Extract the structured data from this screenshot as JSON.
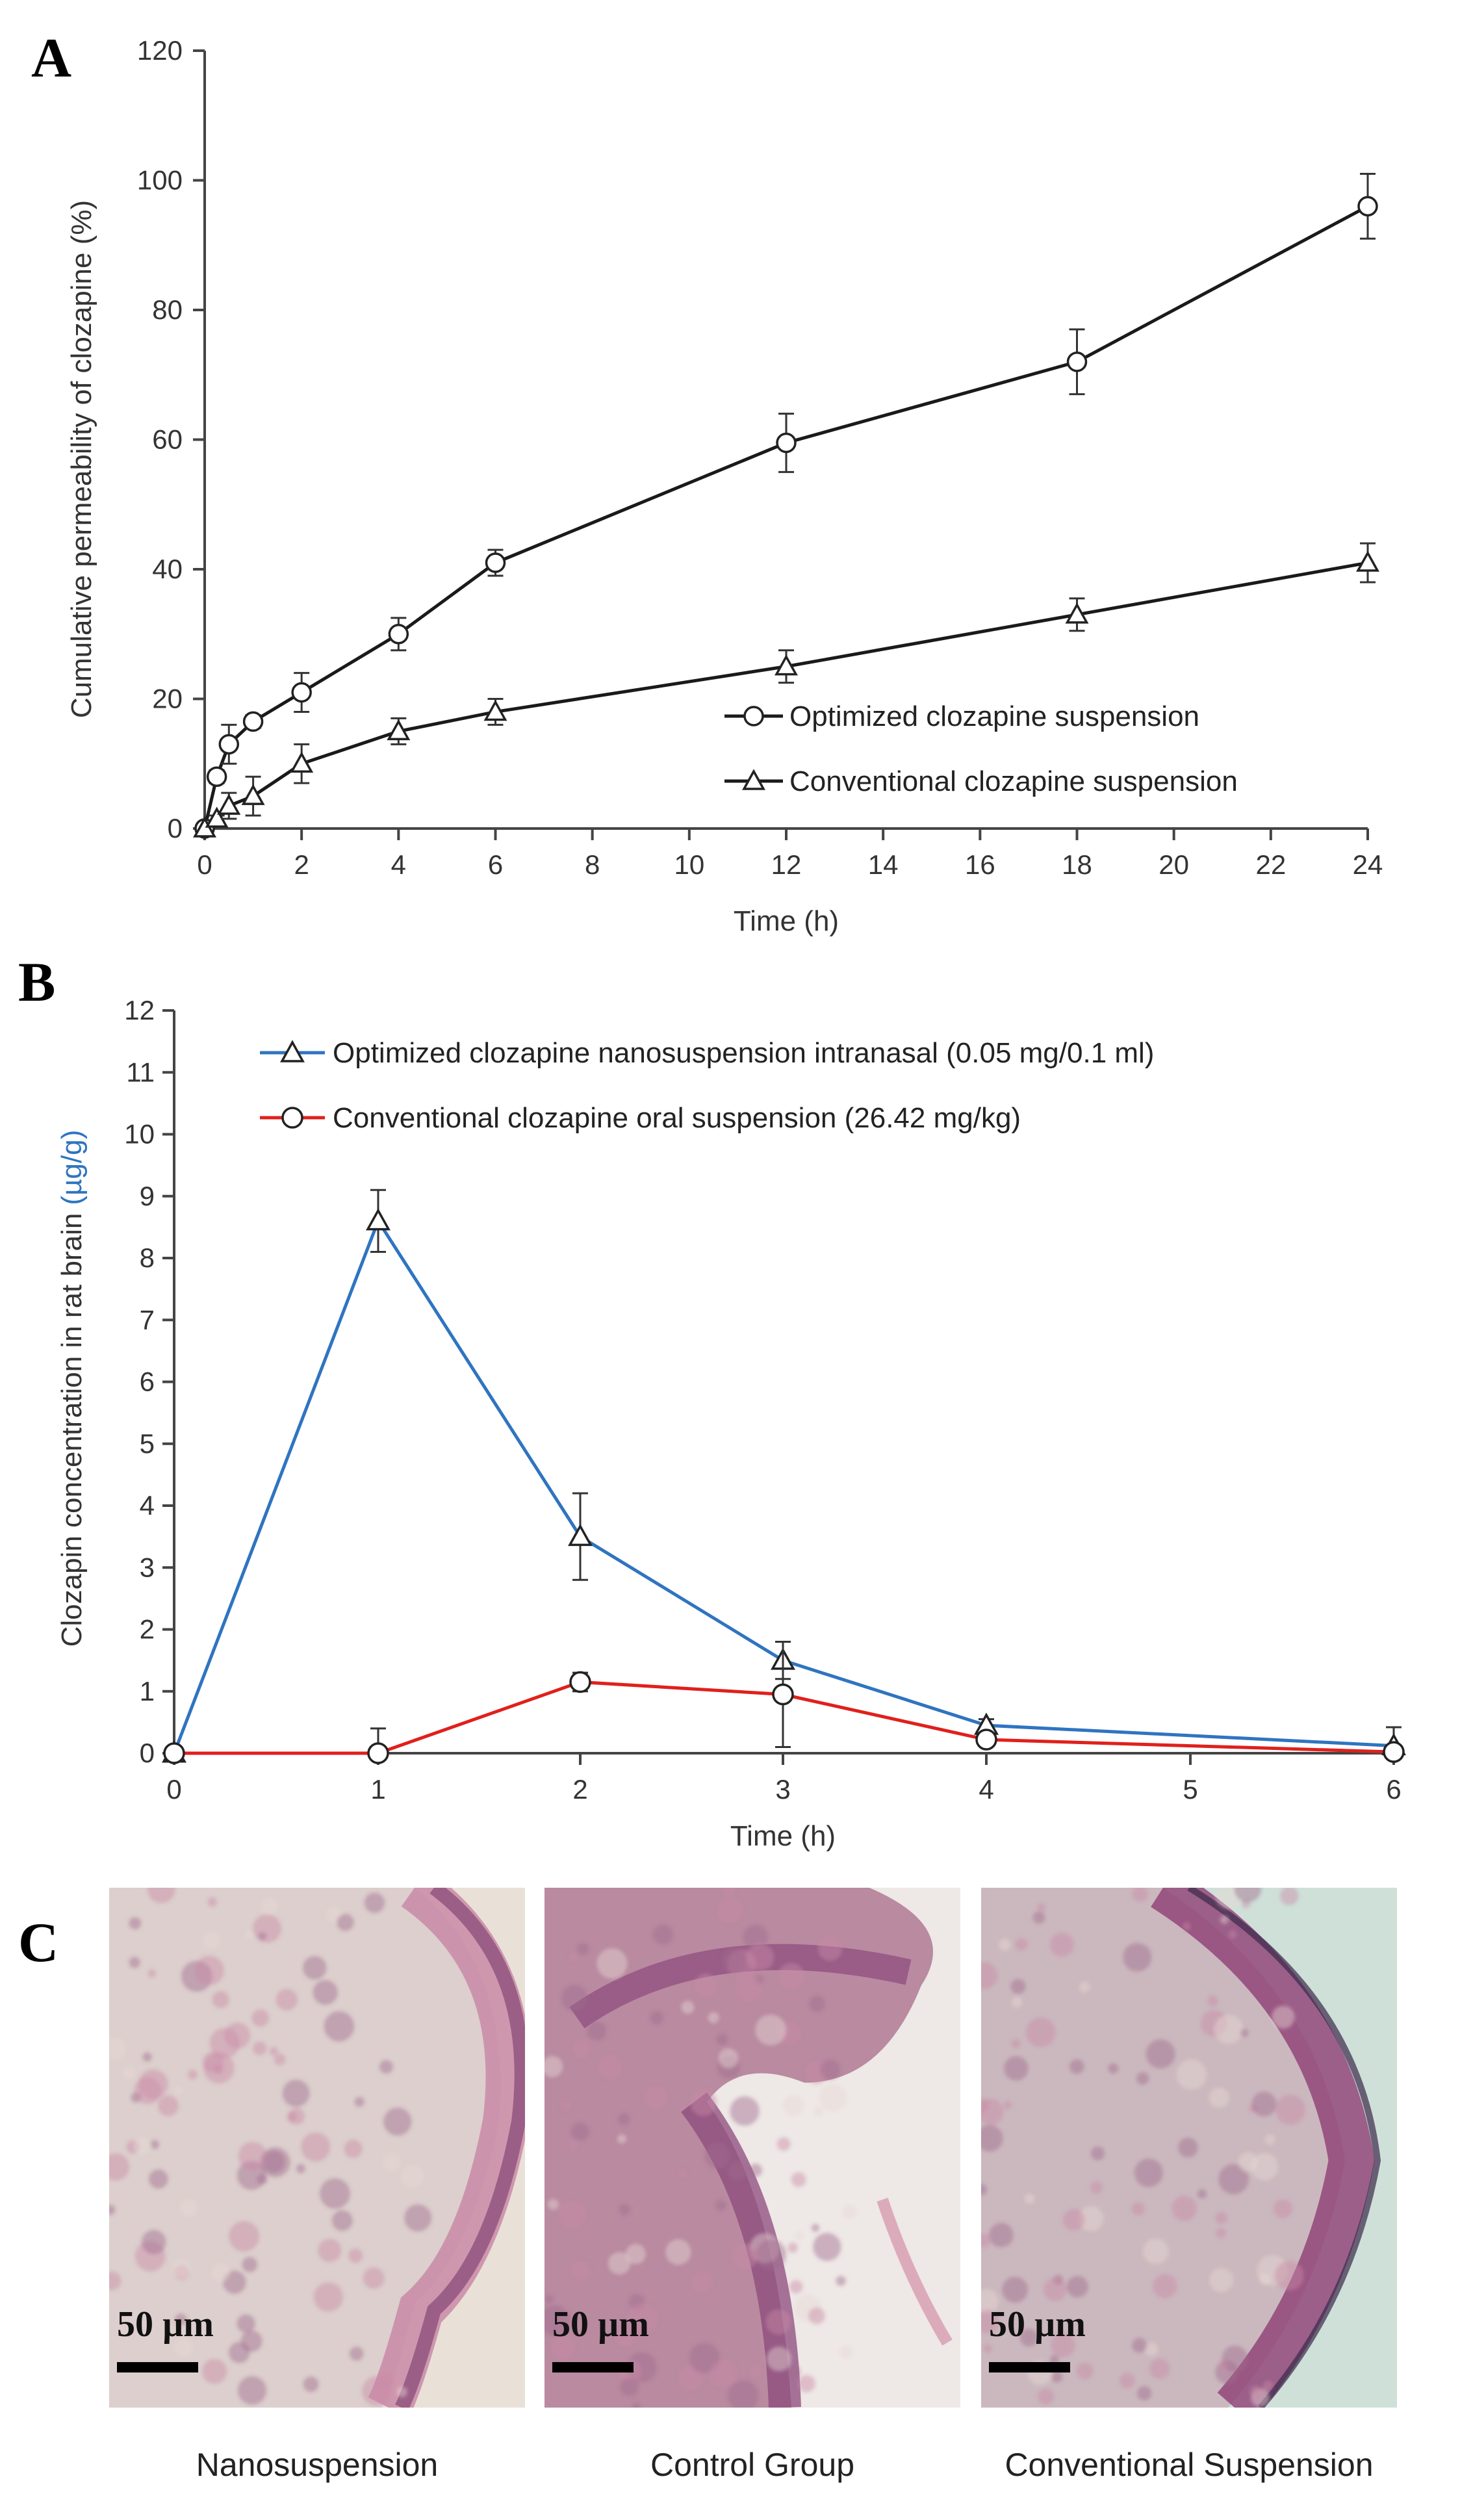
{
  "panels": {
    "a": {
      "letter": "A"
    },
    "b": {
      "letter": "B"
    },
    "c": {
      "letter": "C"
    }
  },
  "chart_data": [
    {
      "id": "A",
      "type": "line",
      "title": "",
      "xlabel": "Time (h)",
      "ylabel": "Cumulative permeability of clozapine (%)",
      "xlim": [
        0,
        24
      ],
      "ylim": [
        0,
        120
      ],
      "xticks": [
        0,
        2,
        4,
        6,
        8,
        10,
        12,
        14,
        16,
        18,
        20,
        22,
        24
      ],
      "yticks": [
        0,
        20,
        40,
        60,
        80,
        100,
        120
      ],
      "grid": false,
      "legend_position": "lower-right",
      "series": [
        {
          "name": "Optimized clozapine suspension",
          "marker": "circle",
          "color": "#1a1a1a",
          "x": [
            0,
            0.25,
            0.5,
            1,
            2,
            4,
            6,
            12,
            18,
            24
          ],
          "y": [
            0,
            8,
            13,
            16.5,
            21,
            30,
            41,
            59.5,
            72,
            96
          ],
          "err": [
            0,
            1,
            3,
            1,
            3,
            2.5,
            2,
            4.5,
            5,
            5
          ]
        },
        {
          "name": "Conventional clozapine suspension",
          "marker": "triangle",
          "color": "#1a1a1a",
          "x": [
            0,
            0.25,
            0.5,
            1,
            2,
            4,
            6,
            12,
            18,
            24
          ],
          "y": [
            0,
            1.5,
            3.5,
            5,
            10,
            15,
            18,
            25,
            33,
            41
          ],
          "err": [
            0,
            0.5,
            2,
            3,
            3,
            2,
            2,
            2.5,
            2.5,
            3
          ]
        }
      ]
    },
    {
      "id": "B",
      "type": "line",
      "title": "",
      "xlabel": "Time (h)",
      "ylabel": "Clozapin concentration in rat brain",
      "ylabel_unit": "(µg/g)",
      "xticks": [
        0,
        1,
        2,
        3,
        4,
        5,
        6
      ],
      "ylim": [
        0,
        12
      ],
      "yticks": [
        0,
        1,
        2,
        3,
        4,
        5,
        6,
        7,
        8,
        9,
        10,
        11,
        12
      ],
      "grid": false,
      "legend_position": "top",
      "series": [
        {
          "name": "Optimized clozapine nanosuspension intranasal (0.05 mg/0.1 ml)",
          "marker": "triangle",
          "color": "#2f74c0",
          "x": [
            0,
            1,
            2,
            3,
            4,
            6
          ],
          "y": [
            0,
            8.6,
            3.5,
            1.5,
            0.45,
            0.12
          ],
          "err": [
            0,
            0.5,
            0.7,
            0.3,
            0.1,
            0.3
          ]
        },
        {
          "name": "Conventional clozapine oral suspension (26.42 mg/kg)",
          "marker": "circle",
          "color": "#e0201c",
          "x": [
            0,
            1,
            2,
            3,
            4,
            6
          ],
          "y": [
            0,
            0,
            1.15,
            0.95,
            0.22,
            0.02
          ],
          "err": [
            0,
            0.4,
            0.15,
            0.85,
            0.1,
            0.05
          ]
        }
      ]
    }
  ],
  "histology": {
    "images": [
      {
        "caption": "Nanosuspension",
        "scale": "50 µm"
      },
      {
        "caption": "Control Group",
        "scale": "50 µm"
      },
      {
        "caption": "Conventional Suspension",
        "scale": "50 µm"
      }
    ]
  },
  "colors": {
    "blue_series": "#2f74c0",
    "red_series": "#e0201c",
    "axis": "#333333",
    "tissue_pink": "#c98aa6",
    "tissue_dark": "#7a3a6e",
    "tissue_light": "#e7d9d4"
  }
}
